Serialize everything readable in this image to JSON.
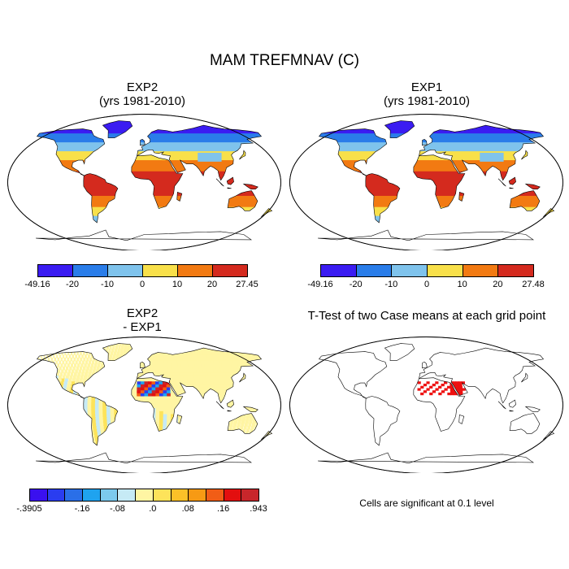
{
  "main_title": "MAM TREFMNAV (C)",
  "panels": {
    "exp2": {
      "title": "EXP2",
      "subtitle": "(yrs 1981-2010)"
    },
    "exp1": {
      "title": "EXP1",
      "subtitle": "(yrs 1981-2010)"
    },
    "diff": {
      "title": "EXP2",
      "subtitle": "- EXP1"
    },
    "ttest": {
      "title": "T-Test of two Case means at each grid point"
    }
  },
  "colorbars": {
    "exp2": {
      "colors": [
        "#3b1cf2",
        "#2a7de9",
        "#7fc3ec",
        "#f8e04a",
        "#f27a12",
        "#d42a1e"
      ],
      "labels": [
        "-49.16",
        "-20",
        "-10",
        "0",
        "10",
        "20",
        "27.45"
      ]
    },
    "exp1": {
      "colors": [
        "#3b1cf2",
        "#2a7de9",
        "#7fc3ec",
        "#f8e04a",
        "#f27a12",
        "#d42a1e"
      ],
      "labels": [
        "-49.16",
        "-20",
        "-10",
        "0",
        "10",
        "20",
        "27.48"
      ]
    },
    "diff": {
      "colors": [
        "#3a10ef",
        "#2a3df0",
        "#2a6fe8",
        "#1fa3ef",
        "#7ccaee",
        "#c6eaf5",
        "#fff5a3",
        "#fde35a",
        "#fbc128",
        "#f79a14",
        "#f15d16",
        "#e30f0f",
        "#c8262b"
      ],
      "labels": [
        "-.3905",
        "-.16",
        "-.08",
        ".0",
        ".08",
        ".16",
        ".943"
      ],
      "label_slots": [
        0,
        3,
        5,
        7,
        9,
        11,
        13
      ]
    }
  },
  "significance_note": "Cells are significant at 0.1 level"
}
